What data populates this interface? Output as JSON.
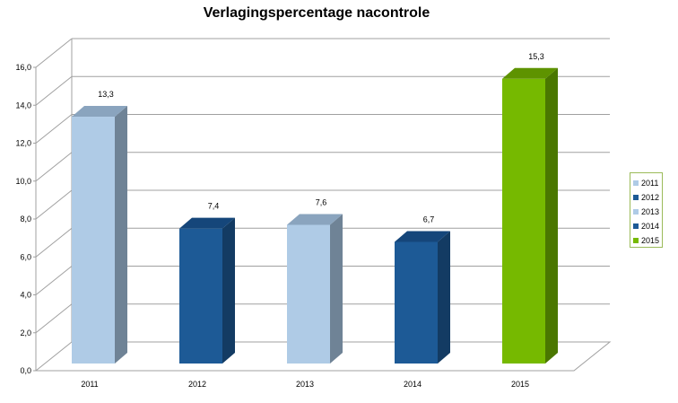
{
  "chart_data": {
    "type": "bar",
    "title": "Verlagingspercentage nacontrole",
    "xlabel": "",
    "ylabel": "",
    "categories": [
      "2011",
      "2012",
      "2013",
      "2014",
      "2015"
    ],
    "values": [
      13.3,
      7.4,
      7.6,
      6.7,
      15.3
    ],
    "value_labels": [
      "13,3",
      "7,4",
      "7,6",
      "6,7",
      "15,3"
    ],
    "ylim": [
      0,
      16
    ],
    "y_ticks": [
      0,
      2,
      4,
      6,
      8,
      10,
      12,
      14,
      16
    ],
    "y_tick_labels": [
      "0,0",
      "2,0",
      "4,0",
      "6,0",
      "8,0",
      "10,0",
      "12,0",
      "14,0",
      "16,0"
    ],
    "grid": true,
    "style": "3d-column",
    "legend_position": "right",
    "legend": [
      {
        "name": "2011",
        "color": "#afcbe6"
      },
      {
        "name": "2012",
        "color": "#1d5a96"
      },
      {
        "name": "2013",
        "color": "#afcbe6"
      },
      {
        "name": "2014",
        "color": "#1d5a96"
      },
      {
        "name": "2015",
        "color": "#76b900"
      }
    ],
    "bar_colors": [
      "#afcbe6",
      "#1d5a96",
      "#afcbe6",
      "#1d5a96",
      "#76b900"
    ],
    "bar_top_colors": [
      "#8aa4be",
      "#15467a",
      "#8aa4be",
      "#15467a",
      "#5e9300"
    ],
    "bar_side_colors": [
      "#6f8396",
      "#133b63",
      "#6f8396",
      "#133b63",
      "#4a7700"
    ],
    "grid_color": "#a0a0a0"
  }
}
